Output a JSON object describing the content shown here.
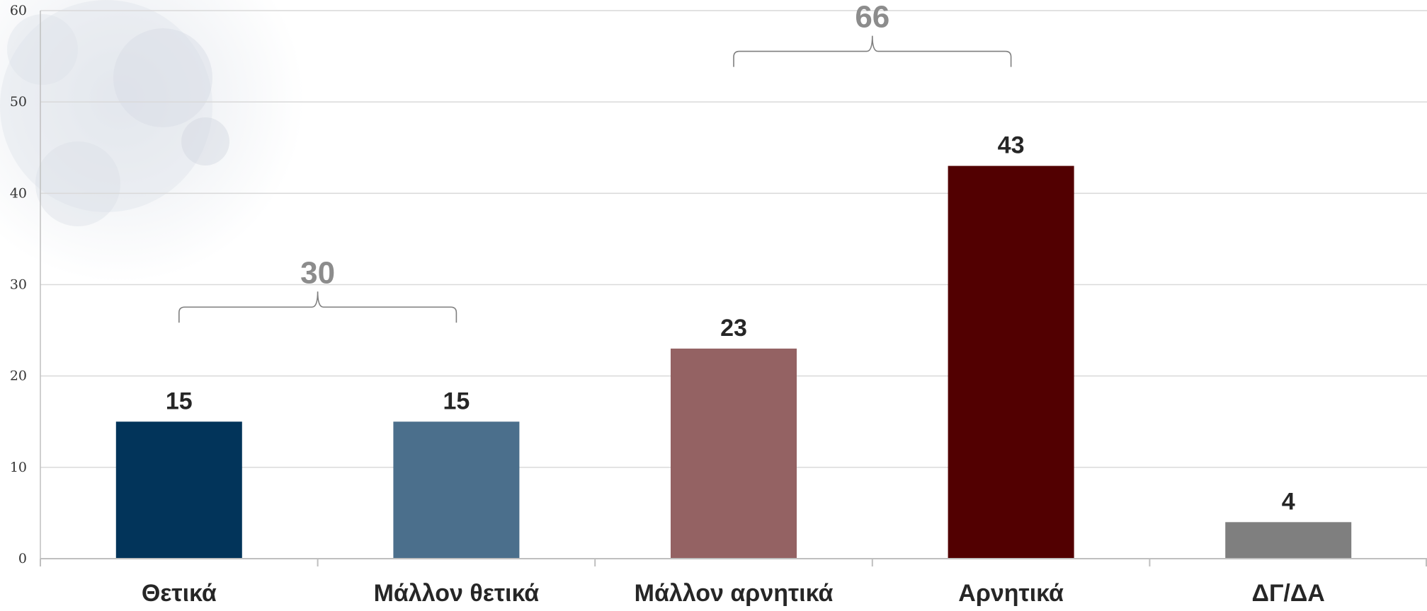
{
  "chart_data": {
    "type": "bar",
    "categories": [
      "Θετικά",
      "Μάλλον θετικά",
      "Μάλλον αρνητικά",
      "Αρνητικά",
      "ΔΓ/ΔΑ"
    ],
    "values": [
      15,
      15,
      23,
      43,
      4
    ],
    "bar_colors": [
      "#02345a",
      "#4b6f8c",
      "#946263",
      "#520001",
      "#7f7f7f"
    ],
    "ylim": [
      0,
      60
    ],
    "yticks": [
      0,
      10,
      20,
      30,
      40,
      50,
      60
    ],
    "grid": true,
    "legend": "none",
    "title": "",
    "xlabel": "",
    "ylabel": "",
    "group_totals": [
      {
        "from": 0,
        "to": 1,
        "label": "30"
      },
      {
        "from": 2,
        "to": 3,
        "label": "66"
      }
    ],
    "colors": {
      "grid": "#d9d9d9",
      "axis": "#bfbfbf",
      "bracket": "#7f7f7f",
      "bracket_label": "#8c8c8c"
    }
  }
}
